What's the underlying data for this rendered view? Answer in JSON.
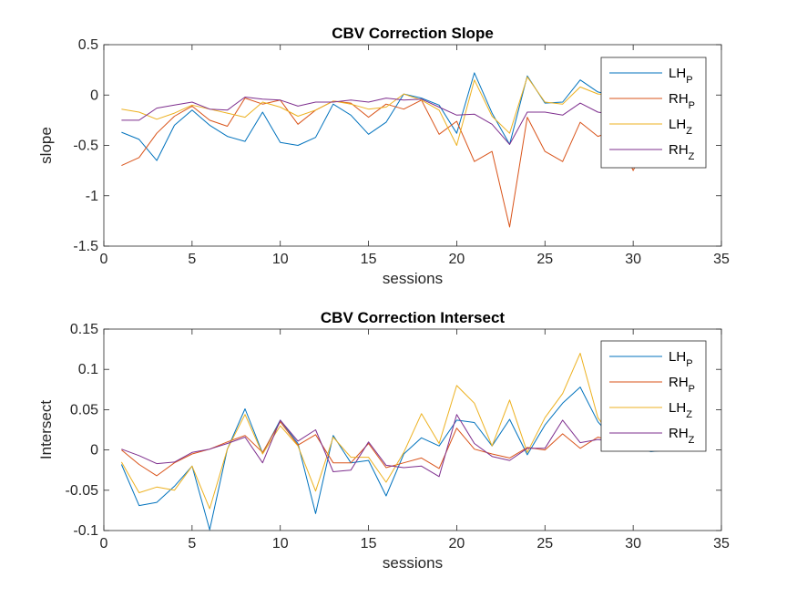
{
  "chart_data": [
    {
      "type": "line",
      "title": "CBV Correction Slope",
      "xlabel": "sessions",
      "ylabel": "slope",
      "xlim": [
        0,
        35
      ],
      "ylim": [
        -1.5,
        0.5
      ],
      "xticks": [
        0,
        5,
        10,
        15,
        20,
        25,
        30,
        35
      ],
      "yticks": [
        -1.5,
        -1,
        -0.5,
        0,
        0.5
      ],
      "xtick_labels": [
        "0",
        "5",
        "10",
        "15",
        "20",
        "25",
        "30",
        "35"
      ],
      "ytick_labels": [
        "-1.5",
        "-1",
        "-0.5",
        "0",
        "0.5"
      ],
      "grid": false,
      "legend_position": "top-right",
      "x": [
        1,
        2,
        3,
        4,
        5,
        6,
        7,
        8,
        9,
        10,
        11,
        12,
        13,
        14,
        15,
        16,
        17,
        18,
        19,
        20,
        21,
        22,
        23,
        24,
        25,
        26,
        27,
        28,
        29,
        30,
        31,
        32
      ],
      "series": [
        {
          "name": "LH",
          "sub": "P",
          "color": "#0072BD",
          "values": [
            -0.37,
            -0.44,
            -0.65,
            -0.3,
            -0.15,
            -0.3,
            -0.41,
            -0.46,
            -0.17,
            -0.47,
            -0.5,
            -0.42,
            -0.09,
            -0.2,
            -0.39,
            -0.27,
            0.01,
            -0.03,
            -0.1,
            -0.38,
            0.22,
            -0.18,
            -0.49,
            0.19,
            -0.08,
            -0.07,
            0.15,
            0.03,
            -0.01,
            0.0,
            0.0,
            0.0
          ]
        },
        {
          "name": "RH",
          "sub": "P",
          "color": "#D95319",
          "values": [
            -0.7,
            -0.62,
            -0.38,
            -0.21,
            -0.11,
            -0.25,
            -0.31,
            -0.03,
            -0.09,
            -0.05,
            -0.29,
            -0.15,
            -0.06,
            -0.08,
            -0.22,
            -0.09,
            -0.14,
            -0.05,
            -0.39,
            -0.26,
            -0.66,
            -0.56,
            -1.31,
            -0.22,
            -0.56,
            -0.66,
            -0.27,
            -0.41,
            -0.35,
            -0.75,
            -0.4,
            -0.4
          ]
        },
        {
          "name": "LH",
          "sub": "Z",
          "color": "#EDB120",
          "values": [
            -0.14,
            -0.17,
            -0.24,
            -0.18,
            -0.1,
            -0.14,
            -0.18,
            -0.22,
            -0.07,
            -0.12,
            -0.21,
            -0.15,
            -0.06,
            -0.09,
            -0.14,
            -0.12,
            0.01,
            -0.05,
            -0.15,
            -0.5,
            0.15,
            -0.21,
            -0.38,
            0.18,
            -0.07,
            -0.09,
            0.08,
            0.01,
            0.0,
            0.0,
            0.0,
            0.0
          ]
        },
        {
          "name": "RH",
          "sub": "Z",
          "color": "#7E2F8E",
          "values": [
            -0.25,
            -0.25,
            -0.13,
            -0.1,
            -0.07,
            -0.14,
            -0.15,
            -0.02,
            -0.04,
            -0.05,
            -0.11,
            -0.07,
            -0.07,
            -0.05,
            -0.07,
            -0.03,
            -0.05,
            -0.04,
            -0.12,
            -0.2,
            -0.19,
            -0.29,
            -0.49,
            -0.17,
            -0.17,
            -0.2,
            -0.08,
            -0.17,
            -0.2,
            -0.2,
            -0.2,
            -0.2
          ]
        }
      ]
    },
    {
      "type": "line",
      "title": "CBV Correction Intersect",
      "xlabel": "sessions",
      "ylabel": "Intersect",
      "xlim": [
        0,
        35
      ],
      "ylim": [
        -0.1,
        0.15
      ],
      "xticks": [
        0,
        5,
        10,
        15,
        20,
        25,
        30,
        35
      ],
      "yticks": [
        -0.1,
        -0.05,
        0,
        0.05,
        0.1,
        0.15
      ],
      "xtick_labels": [
        "0",
        "5",
        "10",
        "15",
        "20",
        "25",
        "30",
        "35"
      ],
      "ytick_labels": [
        "-0.1",
        "-0.05",
        "0",
        "0.05",
        "0.1",
        "0.15"
      ],
      "grid": false,
      "legend_position": "top-right",
      "x": [
        1,
        2,
        3,
        4,
        5,
        6,
        7,
        8,
        9,
        10,
        11,
        12,
        13,
        14,
        15,
        16,
        17,
        18,
        19,
        20,
        21,
        22,
        23,
        24,
        25,
        26,
        27,
        28,
        29,
        30,
        31,
        32
      ],
      "series": [
        {
          "name": "LH",
          "sub": "P",
          "color": "#0072BD",
          "values": [
            -0.018,
            -0.069,
            -0.065,
            -0.045,
            -0.02,
            -0.099,
            0.001,
            0.051,
            -0.004,
            0.037,
            0.008,
            -0.079,
            0.018,
            -0.016,
            -0.013,
            -0.057,
            -0.005,
            0.015,
            0.005,
            0.037,
            0.034,
            0.005,
            0.038,
            -0.006,
            0.031,
            0.058,
            0.078,
            0.035,
            0.01,
            0.005,
            -0.002,
            0.0
          ]
        },
        {
          "name": "RH",
          "sub": "P",
          "color": "#D95319",
          "values": [
            0.0,
            -0.018,
            -0.032,
            -0.016,
            -0.005,
            0.001,
            0.01,
            0.018,
            -0.003,
            0.035,
            0.006,
            0.019,
            -0.016,
            -0.016,
            0.008,
            -0.022,
            -0.016,
            -0.01,
            -0.023,
            0.027,
            0.001,
            -0.005,
            -0.01,
            0.003,
            0.0,
            0.02,
            0.002,
            0.016,
            0.01,
            0.005,
            0.0,
            0.0
          ]
        },
        {
          "name": "LH",
          "sub": "Z",
          "color": "#EDB120",
          "values": [
            -0.015,
            -0.053,
            -0.046,
            -0.05,
            -0.02,
            -0.073,
            0.001,
            0.044,
            -0.005,
            0.03,
            0.005,
            -0.051,
            0.016,
            -0.009,
            -0.009,
            -0.04,
            -0.003,
            0.045,
            0.008,
            0.08,
            0.058,
            0.005,
            0.062,
            -0.003,
            0.04,
            0.07,
            0.12,
            0.04,
            0.01,
            0.005,
            0.0,
            0.0
          ]
        },
        {
          "name": "RH",
          "sub": "Z",
          "color": "#7E2F8E",
          "values": [
            0.001,
            -0.007,
            -0.017,
            -0.015,
            -0.003,
            0.001,
            0.008,
            0.016,
            -0.016,
            0.037,
            0.011,
            0.025,
            -0.027,
            -0.025,
            0.01,
            -0.019,
            -0.022,
            -0.02,
            -0.033,
            0.044,
            0.008,
            -0.008,
            -0.013,
            0.002,
            0.002,
            0.037,
            0.009,
            0.013,
            0.01,
            0.005,
            0.0,
            0.0
          ]
        }
      ]
    }
  ]
}
